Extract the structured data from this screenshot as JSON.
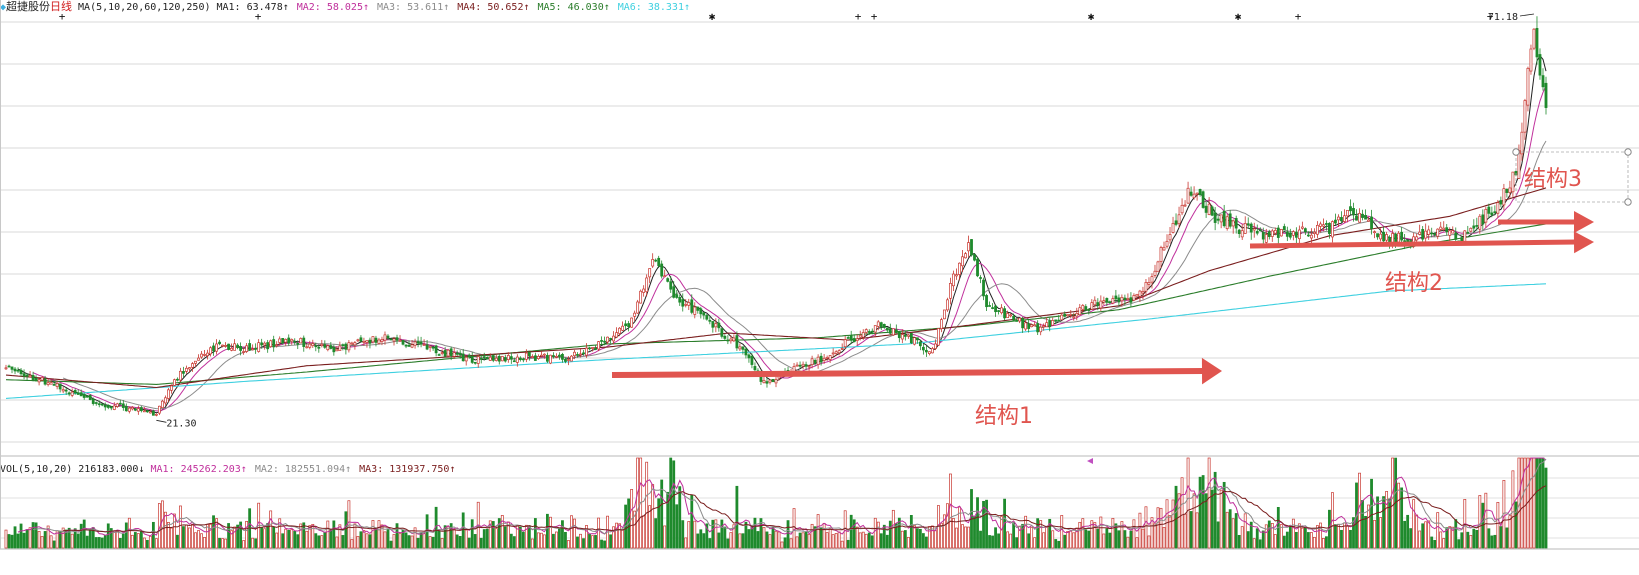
{
  "header": {
    "stock_name": "超捷股份",
    "period": "日线",
    "ma_params": "MA(5,10,20,60,120,250)",
    "ma_values": [
      {
        "label": "MA1:",
        "value": "63.478↑",
        "color": "#222222"
      },
      {
        "label": "MA2:",
        "value": "58.025↑",
        "color": "#c0309c"
      },
      {
        "label": "MA3:",
        "value": "53.611↑",
        "color": "#8c8c8c"
      },
      {
        "label": "MA4:",
        "value": "50.652↑",
        "color": "#7a1e1e"
      },
      {
        "label": "MA5:",
        "value": "46.030↑",
        "color": "#2b7d2b"
      },
      {
        "label": "MA6:",
        "value": "38.331↑",
        "color": "#3fd0e0"
      }
    ]
  },
  "volume_header": {
    "params": "VOL(5,10,20)",
    "vol_value": "216183.000↓",
    "ma_values": [
      {
        "label": "MA1:",
        "value": "245262.203↑",
        "color": "#c0309c"
      },
      {
        "label": "MA2:",
        "value": "182551.094↑",
        "color": "#8c8c8c"
      },
      {
        "label": "MA3:",
        "value": "131937.750↑",
        "color": "#7a1e1e"
      }
    ]
  },
  "chart_data": {
    "type": "candlestick",
    "series": [
      {
        "name": "MA1",
        "color": "#222222"
      },
      {
        "name": "MA2",
        "color": "#c0309c"
      },
      {
        "name": "MA3",
        "color": "#8c8c8c"
      },
      {
        "name": "MA4",
        "color": "#7a1e1e"
      },
      {
        "name": "MA5",
        "color": "#2b7d2b"
      },
      {
        "name": "MA6",
        "color": "#3fd0e0"
      }
    ],
    "price_anchors": [
      [
        0,
        27.5
      ],
      [
        15,
        25.5
      ],
      [
        30,
        23.0
      ],
      [
        42,
        22.2
      ],
      [
        50,
        21.6
      ],
      [
        58,
        27.0
      ],
      [
        70,
        30.5
      ],
      [
        80,
        30.0
      ],
      [
        95,
        31.0
      ],
      [
        110,
        30.0
      ],
      [
        125,
        31.5
      ],
      [
        140,
        30.0
      ],
      [
        155,
        28.5
      ],
      [
        175,
        29.0
      ],
      [
        185,
        28.5
      ],
      [
        195,
        30.0
      ],
      [
        208,
        33.5
      ],
      [
        215,
        41.5
      ],
      [
        222,
        37.0
      ],
      [
        235,
        33.0
      ],
      [
        245,
        30.0
      ],
      [
        252,
        25.5
      ],
      [
        260,
        27.0
      ],
      [
        270,
        28.5
      ],
      [
        280,
        31.0
      ],
      [
        290,
        33.0
      ],
      [
        300,
        31.5
      ],
      [
        308,
        29.5
      ],
      [
        314,
        38.0
      ],
      [
        320,
        43.5
      ],
      [
        326,
        36.0
      ],
      [
        334,
        34.0
      ],
      [
        342,
        32.5
      ],
      [
        360,
        35.5
      ],
      [
        375,
        36.5
      ],
      [
        380,
        38.5
      ],
      [
        388,
        46.0
      ],
      [
        394,
        50.5
      ],
      [
        402,
        47.0
      ],
      [
        410,
        45.5
      ],
      [
        420,
        44.5
      ],
      [
        430,
        45.0
      ],
      [
        440,
        45.5
      ],
      [
        446,
        48.0
      ],
      [
        452,
        46.0
      ],
      [
        460,
        44.0
      ],
      [
        470,
        44.5
      ],
      [
        478,
        45.5
      ],
      [
        484,
        44.0
      ],
      [
        490,
        46.5
      ],
      [
        496,
        48.5
      ],
      [
        502,
        52.5
      ],
      [
        508,
        71.2
      ],
      [
        512,
        60.0
      ]
    ],
    "low_marker": {
      "label": "21.30",
      "value": 21.3
    },
    "high_marker": {
      "label": "71.18",
      "value": 71.18
    },
    "moving_averages": [
      {
        "name": "MA6",
        "anchors": [
          [
            0,
            23.6
          ],
          [
            80,
            25.8
          ],
          [
            200,
            28.6
          ],
          [
            300,
            30.6
          ],
          [
            380,
            33.8
          ],
          [
            460,
            37.4
          ],
          [
            512,
            38.33
          ]
        ]
      },
      {
        "name": "MA5",
        "anchors": [
          [
            0,
            26.0
          ],
          [
            50,
            25.4
          ],
          [
            100,
            27.0
          ],
          [
            200,
            30.6
          ],
          [
            270,
            31.4
          ],
          [
            320,
            32.9
          ],
          [
            370,
            35.0
          ],
          [
            420,
            39.3
          ],
          [
            470,
            43.3
          ],
          [
            512,
            46.03
          ]
        ]
      },
      {
        "name": "MA4",
        "anchors": [
          [
            0,
            26.6
          ],
          [
            50,
            25.0
          ],
          [
            100,
            27.8
          ],
          [
            200,
            30.2
          ],
          [
            240,
            32.0
          ],
          [
            280,
            31.1
          ],
          [
            320,
            33.0
          ],
          [
            370,
            35.5
          ],
          [
            400,
            40.0
          ],
          [
            440,
            44.5
          ],
          [
            480,
            47.0
          ],
          [
            512,
            50.65
          ]
        ]
      }
    ],
    "annotations": [
      {
        "label": "结构1",
        "color": "#e0554f"
      },
      {
        "label": "结构2",
        "color": "#e0554f"
      },
      {
        "label": "结构3",
        "color": "#e0554f"
      }
    ],
    "volume_ylim": [
      0,
      1.0
    ],
    "ylim": [
      18,
      73
    ],
    "grid": "horizontal"
  }
}
